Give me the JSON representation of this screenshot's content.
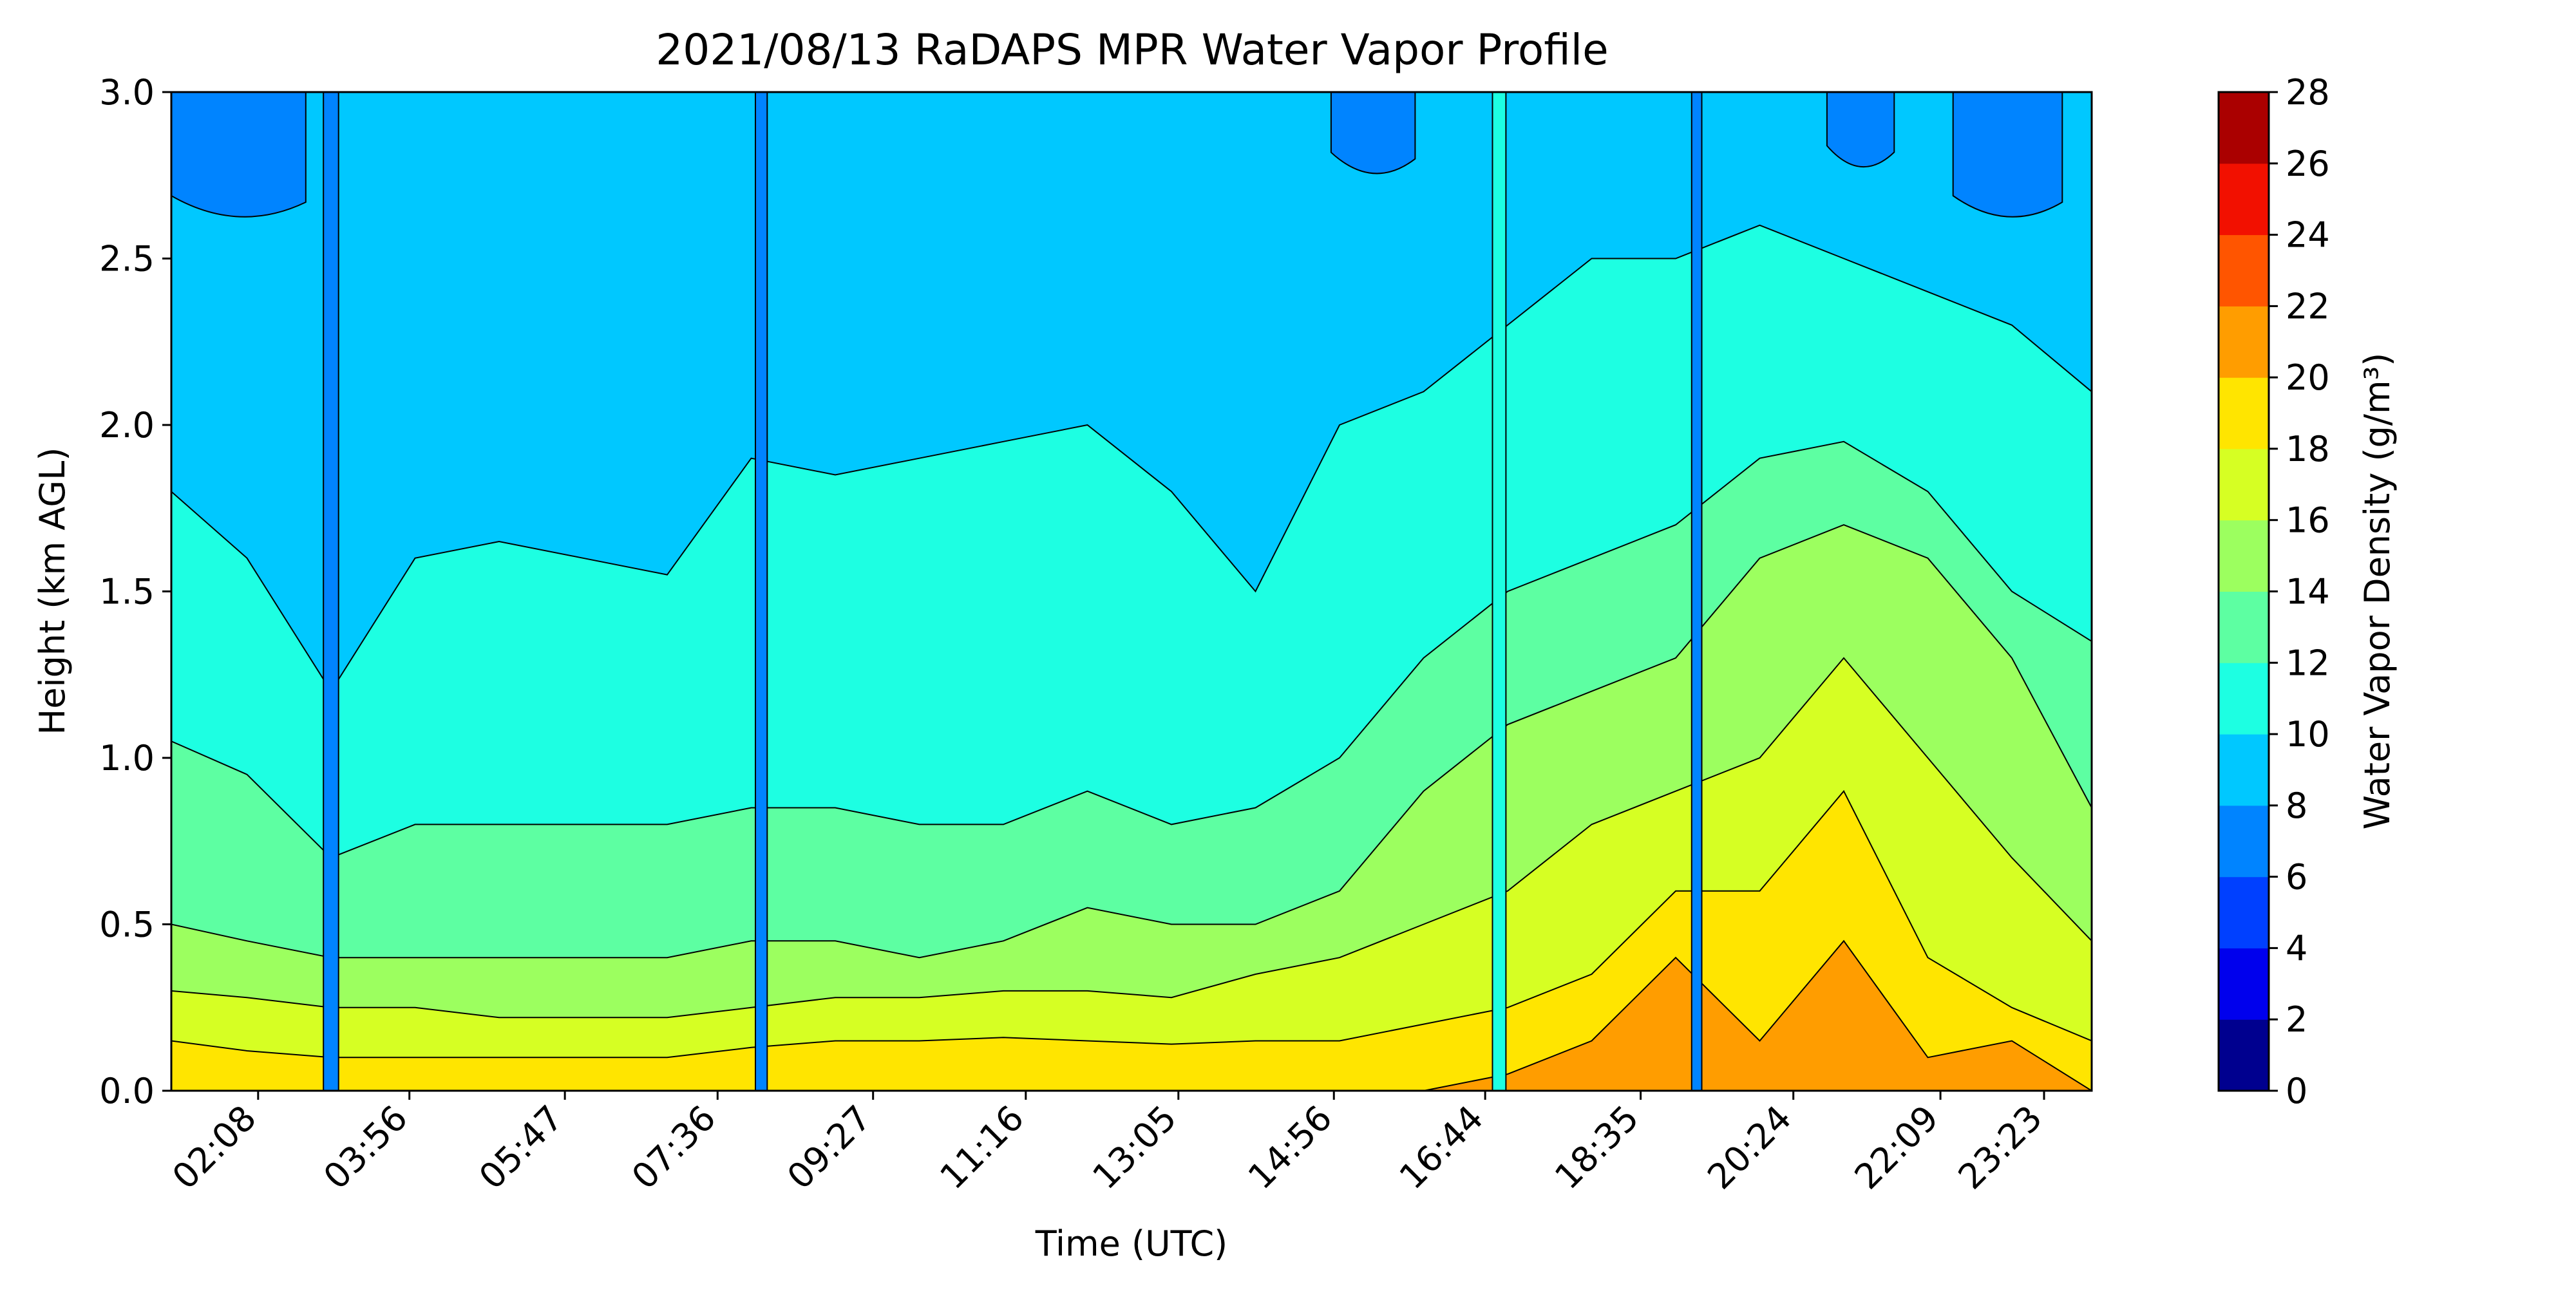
{
  "chart_data": {
    "type": "heatmap",
    "subtype": "filled-contour",
    "title": "2021/08/13 RaDAPS MPR Water Vapor Profile",
    "xlabel": "Time (UTC)",
    "ylabel": "Height (km AGL)",
    "colorbar_label": "Water Vapor Density (g/m³)",
    "xlim_hours": [
      1.1,
      23.95
    ],
    "ylim": [
      0,
      3.0
    ],
    "x_ticks": [
      {
        "label": "02:08",
        "hour": 2.133
      },
      {
        "label": "03:56",
        "hour": 3.933
      },
      {
        "label": "05:47",
        "hour": 5.783
      },
      {
        "label": "07:36",
        "hour": 7.6
      },
      {
        "label": "09:27",
        "hour": 9.45
      },
      {
        "label": "11:16",
        "hour": 11.267
      },
      {
        "label": "13:05",
        "hour": 13.083
      },
      {
        "label": "14:56",
        "hour": 14.933
      },
      {
        "label": "16:44",
        "hour": 16.733
      },
      {
        "label": "18:35",
        "hour": 18.583
      },
      {
        "label": "20:24",
        "hour": 20.4
      },
      {
        "label": "22:09",
        "hour": 22.15
      },
      {
        "label": "23:23",
        "hour": 23.383
      }
    ],
    "y_ticks": [
      "0.0",
      "0.5",
      "1.0",
      "1.5",
      "2.0",
      "2.5",
      "3.0"
    ],
    "y_tick_values": [
      0,
      0.5,
      1.0,
      1.5,
      2.0,
      2.5,
      3.0
    ],
    "levels": [
      0,
      2,
      4,
      6,
      8,
      10,
      12,
      14,
      16,
      18,
      20,
      22,
      24,
      26,
      28
    ],
    "level_labels": [
      "0",
      "2",
      "4",
      "6",
      "8",
      "10",
      "12",
      "14",
      "16",
      "18",
      "20",
      "22",
      "24",
      "26",
      "28"
    ],
    "level_colors": [
      "#00008f",
      "#0000ed",
      "#0040ff",
      "#0084ff",
      "#00c8ff",
      "#1dffe2",
      "#5dffa2",
      "#9cff5f",
      "#d6ff23",
      "#ffe500",
      "#ff9d00",
      "#ff5500",
      "#f21000",
      "#aa0000"
    ],
    "contour_boundaries_km": {
      "hours": [
        1.1,
        2.0,
        3.0,
        4.0,
        5.0,
        6.0,
        7.0,
        8.0,
        9.0,
        10.0,
        11.0,
        12.0,
        13.0,
        14.0,
        15.0,
        16.0,
        17.0,
        18.0,
        19.0,
        20.0,
        21.0,
        22.0,
        23.0,
        23.95
      ],
      "top_of_10": [
        1.8,
        1.6,
        1.2,
        1.6,
        1.65,
        1.6,
        1.55,
        1.9,
        1.85,
        1.9,
        1.95,
        2.0,
        1.8,
        1.5,
        2.0,
        2.1,
        2.3,
        2.5,
        2.5,
        2.6,
        2.5,
        2.4,
        2.3,
        2.1
      ],
      "top_of_12": [
        1.05,
        0.95,
        0.7,
        0.8,
        0.8,
        0.8,
        0.8,
        0.85,
        0.85,
        0.8,
        0.8,
        0.9,
        0.8,
        0.85,
        1.0,
        1.3,
        1.5,
        1.6,
        1.7,
        1.9,
        1.95,
        1.8,
        1.5,
        1.35
      ],
      "top_of_14": [
        0.5,
        0.45,
        0.4,
        0.4,
        0.4,
        0.4,
        0.4,
        0.45,
        0.45,
        0.4,
        0.45,
        0.55,
        0.5,
        0.5,
        0.6,
        0.9,
        1.1,
        1.2,
        1.3,
        1.6,
        1.7,
        1.6,
        1.3,
        0.85
      ],
      "top_of_16": [
        0.3,
        0.28,
        0.25,
        0.25,
        0.22,
        0.22,
        0.22,
        0.25,
        0.28,
        0.28,
        0.3,
        0.3,
        0.28,
        0.35,
        0.4,
        0.5,
        0.6,
        0.8,
        0.9,
        1.0,
        1.3,
        1.0,
        0.7,
        0.45
      ],
      "top_of_18": [
        0.15,
        0.12,
        0.1,
        0.1,
        0.1,
        0.1,
        0.1,
        0.13,
        0.15,
        0.15,
        0.16,
        0.15,
        0.14,
        0.15,
        0.15,
        0.2,
        0.25,
        0.35,
        0.6,
        0.6,
        0.9,
        0.4,
        0.25,
        0.15
      ],
      "top_of_20": [
        0,
        0,
        0,
        0,
        0,
        0,
        0,
        0,
        0,
        0,
        0,
        0,
        0,
        0,
        0,
        0,
        0.05,
        0.15,
        0.4,
        0.15,
        0.45,
        0.1,
        0.15,
        0
      ]
    },
    "upper_dry_patches_8": [
      {
        "start_hour": 1.1,
        "end_hour": 2.7,
        "bottom_km": 2.65
      },
      {
        "start_hour": 14.9,
        "end_hour": 15.9,
        "bottom_km": 2.78
      },
      {
        "start_hour": 20.8,
        "end_hour": 21.6,
        "bottom_km": 2.8
      },
      {
        "start_hour": 22.3,
        "end_hour": 23.6,
        "bottom_km": 2.65
      }
    ],
    "vertical_anomalies": [
      {
        "hour": 3.0,
        "width_hours": 0.18,
        "level_index": 3
      },
      {
        "hour": 8.12,
        "width_hours": 0.14,
        "level_index": 3
      },
      {
        "hour": 16.9,
        "width_hours": 0.16,
        "level_index": 5
      },
      {
        "hour": 19.25,
        "width_hours": 0.12,
        "level_index": 3
      }
    ]
  }
}
